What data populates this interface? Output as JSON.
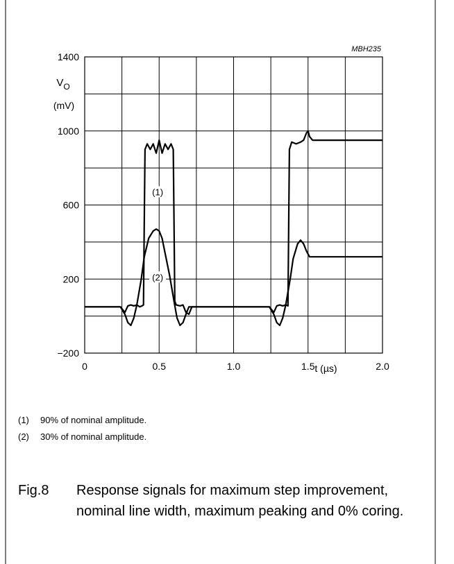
{
  "figure": {
    "code": "MBH235",
    "notes": [
      {
        "num": "(1)",
        "text": "90% of nominal amplitude."
      },
      {
        "num": "(2)",
        "text": "30% of nominal amplitude."
      }
    ],
    "caption_label": "Fig.8",
    "caption_text": "Response signals for maximum step improvement, nominal line width, maximum peaking and 0% coring."
  },
  "chart_data": {
    "type": "line",
    "title": "",
    "xlabel": "t (µs)",
    "ylabel_main": "V",
    "ylabel_sub": "O",
    "ylabel_unit": "(mV)",
    "xlim": [
      0,
      2.0
    ],
    "ylim": [
      -200,
      1400
    ],
    "x_ticks": [
      {
        "value": 0,
        "label": "0"
      },
      {
        "value": 0.5,
        "label": "0.5"
      },
      {
        "value": 1.0,
        "label": "1.0"
      },
      {
        "value": 1.5,
        "label": "1.5"
      },
      {
        "value": 2.0,
        "label": "2.0"
      }
    ],
    "y_ticks": [
      {
        "value": -200,
        "label": "−200"
      },
      {
        "value": 200,
        "label": "200"
      },
      {
        "value": 600,
        "label": "600"
      },
      {
        "value": 1000,
        "label": "1000"
      },
      {
        "value": 1400,
        "label": "1400"
      }
    ],
    "grid": true,
    "x_grid_step": 0.25,
    "y_grid_step": 200,
    "series": [
      {
        "name": "(1)",
        "label_at": [
          0.49,
          660
        ],
        "x": [
          0,
          0.24,
          0.27,
          0.29,
          0.31,
          0.33,
          0.35,
          0.37,
          0.385,
          0.395,
          0.4,
          0.405,
          0.42,
          0.44,
          0.46,
          0.48,
          0.5,
          0.52,
          0.54,
          0.56,
          0.58,
          0.595,
          0.6,
          0.605,
          0.615,
          0.64,
          0.66,
          0.68,
          0.7,
          0.72,
          0.74,
          1.24,
          1.27,
          1.29,
          1.31,
          1.33,
          1.35,
          1.365,
          1.37,
          1.375,
          1.39,
          1.42,
          1.45,
          1.47,
          1.49,
          1.5,
          1.51,
          1.53,
          1.56,
          2.0
        ],
        "y": [
          50,
          50,
          20,
          55,
          60,
          55,
          60,
          50,
          55,
          60,
          500,
          900,
          930,
          900,
          930,
          880,
          950,
          880,
          930,
          900,
          930,
          900,
          500,
          80,
          60,
          55,
          60,
          20,
          10,
          50,
          50,
          50,
          20,
          55,
          60,
          55,
          60,
          55,
          500,
          900,
          940,
          930,
          940,
          950,
          990,
          1000,
          970,
          950,
          950,
          950
        ]
      },
      {
        "name": "(2)",
        "label_at": [
          0.49,
          200
        ],
        "x": [
          0,
          0.24,
          0.27,
          0.29,
          0.31,
          0.33,
          0.35,
          0.38,
          0.4,
          0.43,
          0.46,
          0.48,
          0.5,
          0.52,
          0.54,
          0.57,
          0.6,
          0.62,
          0.64,
          0.66,
          0.68,
          0.7,
          0.72,
          0.74,
          1.24,
          1.27,
          1.29,
          1.31,
          1.33,
          1.35,
          1.38,
          1.4,
          1.43,
          1.45,
          1.47,
          1.49,
          1.51,
          1.54,
          2.0
        ],
        "y": [
          50,
          50,
          10,
          -35,
          -50,
          -10,
          60,
          200,
          320,
          420,
          460,
          470,
          460,
          420,
          340,
          220,
          80,
          -10,
          -50,
          -35,
          10,
          50,
          50,
          50,
          50,
          10,
          -35,
          -50,
          -10,
          60,
          200,
          310,
          390,
          410,
          390,
          350,
          320,
          320,
          320
        ]
      }
    ]
  }
}
